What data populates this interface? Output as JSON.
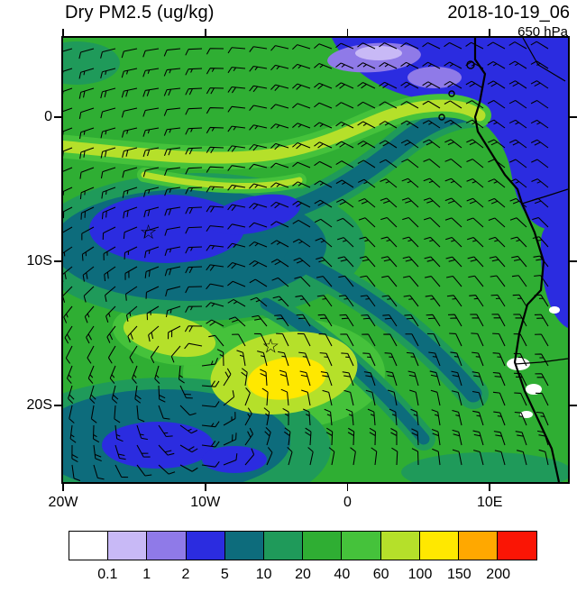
{
  "header": {
    "title": "Dry PM2.5 (ug/kg)",
    "datetime": "2018-10-19_06",
    "level": "650 hPa"
  },
  "colorbar": {
    "levels": [
      "0.1",
      "1",
      "2",
      "5",
      "10",
      "20",
      "40",
      "60",
      "100",
      "150",
      "200"
    ],
    "colors": [
      "#ffffff",
      "#c8b9f6",
      "#8f7ae8",
      "#2b2ce0",
      "#0d6c7c",
      "#1f9a5a",
      "#2fae33",
      "#45c23b",
      "#b5e02a",
      "#ffe800",
      "#ffa800",
      "#fa1505"
    ]
  },
  "chart_data": {
    "type": "heatmap",
    "title": "Dry PM2.5 (ug/kg)",
    "valid_time": "2018-10-19_06",
    "pressure_level": "650 hPa",
    "units": "ug/kg",
    "projection": "lat-lon map, west Africa / tropical South Atlantic",
    "lon_range_deg": [
      -20,
      15.5
    ],
    "lat_range_deg": [
      -25.3,
      5.5
    ],
    "xticks": [
      {
        "label": "20W",
        "lon": -20
      },
      {
        "label": "10W",
        "lon": -10
      },
      {
        "label": "0",
        "lon": 0
      },
      {
        "label": "10E",
        "lon": 10
      }
    ],
    "yticks": [
      {
        "label": "0",
        "lat": 0
      },
      {
        "label": "10S",
        "lat": -10
      },
      {
        "label": "20S",
        "lat": -20
      }
    ],
    "contour_levels": [
      0.1,
      1,
      2,
      5,
      10,
      20,
      40,
      60,
      100,
      150,
      200
    ],
    "palette": [
      "#ffffff",
      "#c8b9f6",
      "#8f7ae8",
      "#2b2ce0",
      "#0d6c7c",
      "#1f9a5a",
      "#2fae33",
      "#45c23b",
      "#b5e02a",
      "#ffe800",
      "#ffa800",
      "#fa1505"
    ],
    "wind_overlay": {
      "type": "barbs",
      "level": "650 hPa"
    },
    "markers": [
      {
        "shape": "open-star",
        "lon": -14.0,
        "lat": -8.0
      },
      {
        "shape": "open-star",
        "lon": -5.4,
        "lat": -15.9
      }
    ],
    "field_summary": [
      {
        "region": "background over most of the domain",
        "value_ugkg": "20-40"
      },
      {
        "region": "broad mass around 14W,8S (near first star) with blue core",
        "value_ugkg": "2-10"
      },
      {
        "region": "curved low bands arcing NE toward the Gulf of Guinea and SE across the interior",
        "value_ugkg": "5-10"
      },
      {
        "region": "bottom-left near 12-18W, 20-24S",
        "value_ugkg": "2-10"
      },
      {
        "region": "NE corner / Gulf of Guinea coast with purple patches",
        "value_ugkg": "0.1-5"
      },
      {
        "region": "zonal enhanced streak near 2-4S from 20W to about 8E",
        "value_ugkg": "60-100"
      },
      {
        "region": "maximum blob near 6W, 16-18S (near second star)",
        "value_ugkg": "100-150"
      },
      {
        "region": "small white spots near the Angola coast around 13E, 13-20S",
        "value_ugkg": "<0.1"
      }
    ],
    "coastline": "African west coast (Cameroon to Namibia) with country borders and Gulf of Guinea islands"
  }
}
